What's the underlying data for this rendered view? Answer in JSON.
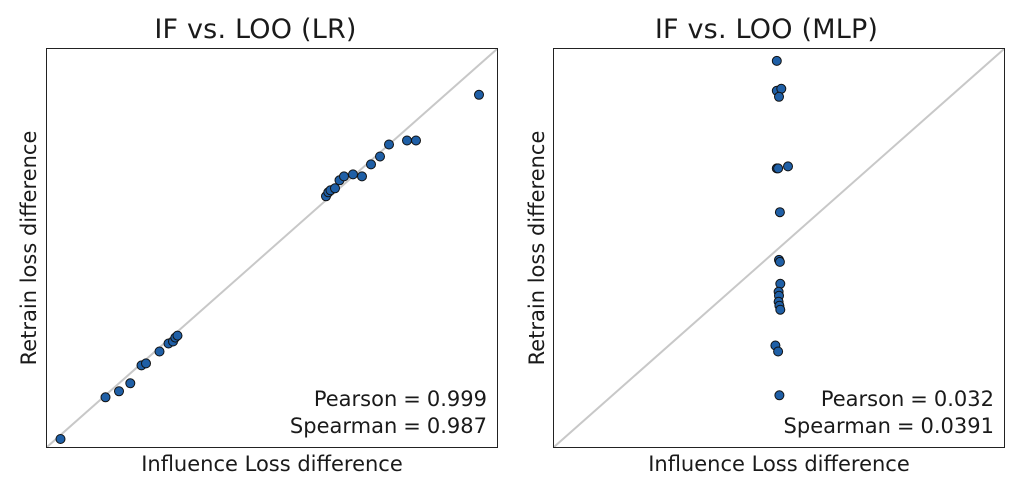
{
  "chart_data": [
    {
      "type": "scatter",
      "title": "IF vs. LOO (LR)",
      "xlabel": "Influence Loss difference",
      "ylabel": "Retrain loss difference",
      "xlim": [
        0,
        100
      ],
      "ylim": [
        0,
        100
      ],
      "grid": false,
      "reference_line": "y = x",
      "point_color": "#1f5fa6",
      "line_color": "#c8c8c8",
      "stats": [
        {
          "label": "Pearson",
          "value": "0.999"
        },
        {
          "label": "Spearman",
          "value": "0.987"
        }
      ],
      "x": [
        3,
        13,
        16,
        18.5,
        21,
        22,
        25,
        27,
        28,
        28.5,
        29,
        62,
        62.5,
        63,
        64,
        65,
        66,
        68,
        70,
        72,
        74,
        76,
        80,
        82,
        96
      ],
      "y": [
        2,
        12.5,
        14,
        16,
        20.5,
        21,
        24,
        26,
        26.5,
        27.5,
        28,
        63,
        64,
        64.5,
        65,
        67,
        68,
        68.5,
        68,
        71,
        73,
        76,
        77,
        77,
        88.5
      ]
    },
    {
      "type": "scatter",
      "title": "IF vs. LOO (MLP)",
      "xlabel": "Influence Loss difference",
      "ylabel": "Retrain loss difference",
      "xlim": [
        0,
        100
      ],
      "ylim": [
        0,
        100
      ],
      "grid": false,
      "reference_line": "y = x",
      "point_color": "#1f5fa6",
      "line_color": "#c8c8c8",
      "stats": [
        {
          "label": "Pearson",
          "value": "0.032"
        },
        {
          "label": "Spearman",
          "value": "0.0391"
        }
      ],
      "x": [
        49.5,
        49.5,
        50.5,
        50,
        49.5,
        52,
        49.8,
        50.2,
        50,
        50.2,
        50.3,
        49.9,
        50,
        49.9,
        50.1,
        50.3,
        49.2,
        49.8,
        50.1
      ],
      "y": [
        97,
        89.5,
        90,
        88,
        70,
        70.5,
        70,
        59,
        47,
        46.5,
        41,
        39,
        38,
        36.5,
        35.5,
        34.5,
        25.5,
        24,
        13
      ]
    }
  ]
}
